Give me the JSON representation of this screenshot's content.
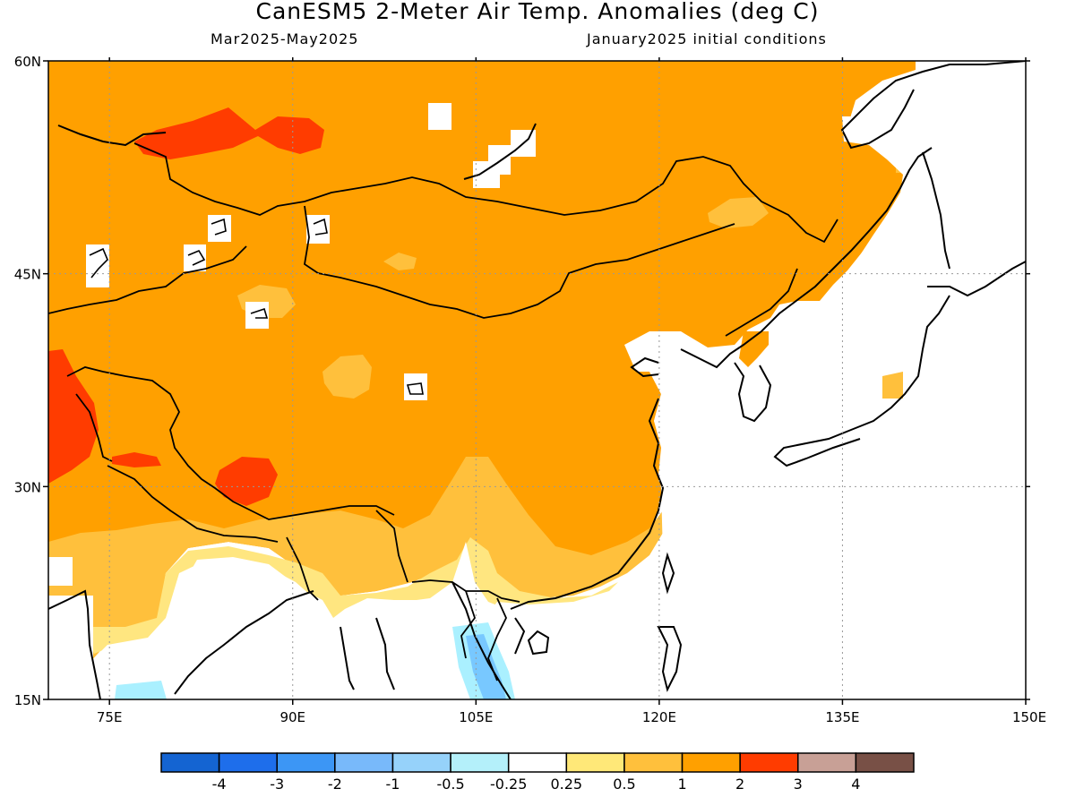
{
  "header": {
    "title": "CanESM5 2-Meter Air Temp. Anomalies (deg C)",
    "period": "Mar2025-May2025",
    "init": "January2025 initial conditions"
  },
  "map": {
    "lon_range": [
      70,
      150
    ],
    "lat_range": [
      15,
      60
    ],
    "lon_ticks": [
      75,
      90,
      105,
      120,
      135,
      150
    ],
    "lat_ticks": [
      15,
      30,
      45,
      60
    ],
    "lon_tick_labels": [
      "75E",
      "90E",
      "105E",
      "120E",
      "135E",
      "150E"
    ],
    "lat_tick_labels": [
      "15N",
      "30N",
      "45N",
      "60N"
    ],
    "grid_lines": "dotted at 15-degree intervals",
    "colors": {
      "land_anomaly_1_2": "#ffa000",
      "land_anomaly_0_5_1": "#ffc03c",
      "land_anomaly_0_25_0_5": "#ffe680",
      "land_anomaly_2_3": "#ff3c00",
      "land_anomaly_neg_0_5_neg_0_25": "#aaf0ff",
      "land_anomaly_neg_1_neg_0_5": "#78c8ff"
    }
  },
  "colorbar": {
    "labels": [
      "-4",
      "-3",
      "-2",
      "-1",
      "-0.5",
      "-0.25",
      "0.25",
      "0.5",
      "1",
      "2",
      "3",
      "4"
    ],
    "colors": [
      "#1464d2",
      "#1e6eeb",
      "#3c96f5",
      "#78b9fa",
      "#96d2fa",
      "#b4f0fa",
      "#ffffff",
      "#ffe878",
      "#ffc03c",
      "#ffa000",
      "#ff3c00",
      "#c8a096",
      "#785046"
    ]
  }
}
